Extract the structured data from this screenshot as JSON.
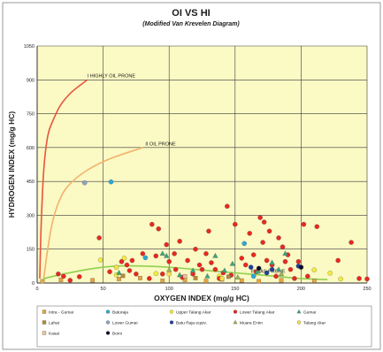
{
  "chart_data": {
    "type": "scatter",
    "title": "OI VS HI",
    "subtitle": "(Modified Van Krevelen Diagram)",
    "xlabel": "OXYGEN INDEX (mg/g HC)",
    "ylabel": "HYDROGEN INDEX (mg/g HC)",
    "xlim": [
      0,
      250
    ],
    "ylim": [
      0,
      1050
    ],
    "xticks": [
      "0",
      "50",
      "100",
      "150",
      "200",
      "250"
    ],
    "yticks": [
      "0",
      "150",
      "300",
      "450",
      "600",
      "750",
      "900",
      "1050"
    ],
    "grid": true,
    "legend_position": "bottom",
    "curves": [
      {
        "label": "I HIGHLY OIL PRONE",
        "color": "#e8553f",
        "x": [
          2,
          3,
          5,
          8,
          12,
          18,
          26,
          38
        ],
        "y": [
          20,
          250,
          500,
          650,
          720,
          790,
          845,
          900
        ]
      },
      {
        "label": "II OIL PRONE",
        "color": "#f2b26b",
        "x": [
          5,
          8,
          12,
          18,
          25,
          38,
          55,
          80
        ],
        "y": [
          20,
          150,
          280,
          380,
          440,
          500,
          550,
          600
        ]
      },
      {
        "label": "III GAS PRONE",
        "color": "#8fd14f",
        "x": [
          5,
          20,
          40,
          60,
          80,
          100,
          120,
          150,
          180,
          200,
          220
        ],
        "y": [
          20,
          40,
          62,
          75,
          75,
          70,
          60,
          45,
          30,
          20,
          15
        ]
      }
    ],
    "annotations": [
      {
        "text": "I HIGHLY OIL PRONE",
        "x": 38,
        "y": 910
      },
      {
        "text": "II OIL PRONE",
        "x": 82,
        "y": 610
      },
      {
        "text": "III GAS PRONE",
        "x": 162,
        "y": 45
      }
    ],
    "series": [
      {
        "name": "Intra - Gumai",
        "marker": "square",
        "color": "#e8a33a",
        "points": [
          [
            4,
            8
          ],
          [
            18,
            14
          ],
          [
            42,
            12
          ],
          [
            62,
            18
          ],
          [
            78,
            22
          ],
          [
            95,
            10
          ],
          [
            112,
            14
          ],
          [
            128,
            9
          ],
          [
            140,
            16
          ],
          [
            155,
            11
          ],
          [
            168,
            8
          ],
          [
            185,
            12
          ],
          [
            210,
            10
          ]
        ]
      },
      {
        "name": "Baturaja",
        "marker": "circle",
        "color": "#2aa8d8",
        "points": [
          [
            56,
            448
          ],
          [
            82,
            112
          ],
          [
            157,
            175
          ],
          [
            164,
            30
          ]
        ]
      },
      {
        "name": "Upper Talang Akar",
        "marker": "circle",
        "color": "#f4ec3a",
        "points": [
          [
            48,
            102
          ],
          [
            60,
            36
          ],
          [
            66,
            110
          ],
          [
            90,
            42
          ],
          [
            138,
            30
          ],
          [
            210,
            58
          ],
          [
            222,
            44
          ],
          [
            230,
            18
          ]
        ]
      },
      {
        "name": "Lower Talang Akar",
        "marker": "circle",
        "color": "#e8281e",
        "points": [
          [
            16,
            40
          ],
          [
            20,
            30
          ],
          [
            25,
            12
          ],
          [
            32,
            28
          ],
          [
            47,
            200
          ],
          [
            55,
            50
          ],
          [
            64,
            95
          ],
          [
            68,
            80
          ],
          [
            70,
            55
          ],
          [
            72,
            100
          ],
          [
            75,
            40
          ],
          [
            80,
            130
          ],
          [
            85,
            20
          ],
          [
            87,
            260
          ],
          [
            90,
            120
          ],
          [
            92,
            240
          ],
          [
            95,
            40
          ],
          [
            98,
            170
          ],
          [
            100,
            95
          ],
          [
            104,
            130
          ],
          [
            105,
            60
          ],
          [
            108,
            185
          ],
          [
            110,
            25
          ],
          [
            114,
            100
          ],
          [
            118,
            40
          ],
          [
            120,
            150
          ],
          [
            123,
            80
          ],
          [
            125,
            60
          ],
          [
            128,
            130
          ],
          [
            130,
            230
          ],
          [
            132,
            90
          ],
          [
            135,
            60
          ],
          [
            138,
            20
          ],
          [
            141,
            45
          ],
          [
            144,
            340
          ],
          [
            147,
            35
          ],
          [
            150,
            260
          ],
          [
            155,
            110
          ],
          [
            158,
            80
          ],
          [
            161,
            220
          ],
          [
            164,
            125
          ],
          [
            166,
            50
          ],
          [
            169,
            290
          ],
          [
            171,
            180
          ],
          [
            172,
            270
          ],
          [
            174,
            100
          ],
          [
            176,
            230
          ],
          [
            178,
            80
          ],
          [
            181,
            30
          ],
          [
            183,
            200
          ],
          [
            186,
            160
          ],
          [
            188,
            95
          ],
          [
            190,
            125
          ],
          [
            192,
            60
          ],
          [
            195,
            20
          ],
          [
            198,
            95
          ],
          [
            202,
            260
          ],
          [
            205,
            30
          ],
          [
            212,
            250
          ],
          [
            228,
            100
          ],
          [
            238,
            180
          ],
          [
            244,
            20
          ],
          [
            250,
            18
          ]
        ]
      },
      {
        "name": "Gumai",
        "marker": "triangle",
        "color": "#3aa678",
        "points": [
          [
            62,
            45
          ],
          [
            95,
            130
          ],
          [
            98,
            120
          ],
          [
            108,
            35
          ],
          [
            118,
            55
          ],
          [
            129,
            30
          ],
          [
            135,
            120
          ],
          [
            142,
            55
          ],
          [
            148,
            85
          ],
          [
            167,
            50
          ],
          [
            178,
            90
          ],
          [
            183,
            60
          ],
          [
            188,
            130
          ]
        ]
      },
      {
        "name": "Lahat",
        "marker": "square",
        "color": "#b38a3a",
        "points": [
          [
            65,
            32
          ],
          [
            120,
            22
          ],
          [
            145,
            28
          ]
        ]
      },
      {
        "name": "Lower Gumai",
        "marker": "circle",
        "color": "#8fa3c8",
        "points": [
          [
            36,
            444
          ]
        ]
      },
      {
        "name": "Batu Raja equiv.",
        "marker": "circle",
        "color": "#1f3f99",
        "points": [
          [
            162,
            70
          ],
          [
            174,
            45
          ],
          [
            178,
            60
          ],
          [
            198,
            75
          ]
        ]
      },
      {
        "name": "Muara Enim",
        "marker": "triangle",
        "color": "#9ab84a",
        "points": [
          [
            100,
            58
          ],
          [
            152,
            25
          ],
          [
            185,
            40
          ]
        ]
      },
      {
        "name": "Talang Akar",
        "marker": "circle",
        "color": "#f5e04a",
        "points": [
          [
            60,
            70
          ],
          [
            100,
            40
          ],
          [
            140,
            20
          ]
        ]
      },
      {
        "name": "Kasai",
        "marker": "square",
        "color": "#f0c090",
        "points": [
          [
            112,
            30
          ]
        ]
      },
      {
        "name": "Bomi",
        "marker": "circle",
        "color": "#0a0a2a",
        "points": [
          [
            168,
            65
          ],
          [
            200,
            70
          ]
        ]
      }
    ]
  }
}
